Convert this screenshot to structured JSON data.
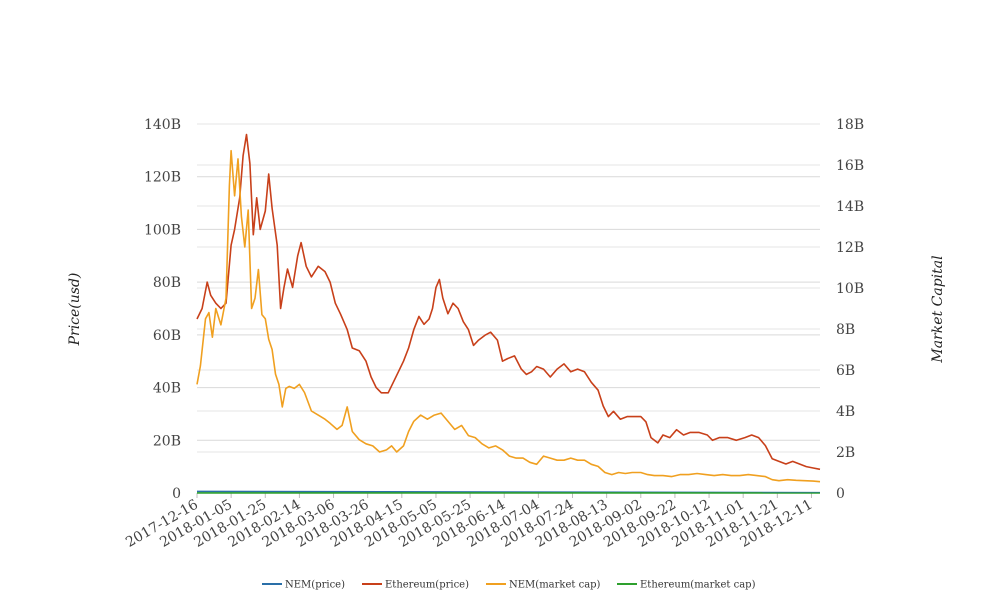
{
  "chart_data": {
    "type": "line",
    "ylabel": "Price(usd)",
    "ylabel_right": "Market Capital",
    "y_left": {
      "ticks": [
        "0",
        "20B",
        "40B",
        "60B",
        "80B",
        "100B",
        "120B",
        "140B"
      ],
      "ylim": [
        0,
        140
      ]
    },
    "y_right": {
      "ticks": [
        "0",
        "2B",
        "4B",
        "6B",
        "8B",
        "10B",
        "12B",
        "14B",
        "16B",
        "18B"
      ],
      "ylim": [
        0,
        18
      ]
    },
    "x_ticks": [
      "2017-12-16",
      "2018-01-05",
      "2018-01-25",
      "2018-02-14",
      "2018-03-06",
      "2018-03-26",
      "2018-04-15",
      "2018-05-05",
      "2018-05-25",
      "2018-06-14",
      "2018-07-04",
      "2018-07-24",
      "2018-08-13",
      "2018-09-02",
      "2018-09-22",
      "2018-10-12",
      "2018-11-01",
      "2018-11-21",
      "2018-12-11"
    ],
    "x_range": [
      "2017-12-16",
      "2018-12-16"
    ],
    "legend_position": "bottom",
    "grid": true,
    "series": [
      {
        "name": "NEM(price)",
        "color": "#2a6fa8",
        "axis": "left",
        "points": [
          [
            "2017-12-16",
            0.6
          ],
          [
            "2018-12-16",
            0.1
          ]
        ]
      },
      {
        "name": "Ethereum(price)",
        "color": "#c8401a",
        "axis": "left",
        "points": [
          [
            "2017-12-16",
            66
          ],
          [
            "2017-12-19",
            70
          ],
          [
            "2017-12-22",
            80
          ],
          [
            "2017-12-24",
            75
          ],
          [
            "2017-12-27",
            72
          ],
          [
            "2017-12-30",
            70
          ],
          [
            "2018-01-02",
            72
          ],
          [
            "2018-01-05",
            94
          ],
          [
            "2018-01-07",
            100
          ],
          [
            "2018-01-10",
            112
          ],
          [
            "2018-01-12",
            128
          ],
          [
            "2018-01-14",
            136
          ],
          [
            "2018-01-16",
            125
          ],
          [
            "2018-01-18",
            98
          ],
          [
            "2018-01-20",
            112
          ],
          [
            "2018-01-22",
            100
          ],
          [
            "2018-01-25",
            107
          ],
          [
            "2018-01-27",
            121
          ],
          [
            "2018-01-29",
            108
          ],
          [
            "2018-02-01",
            94
          ],
          [
            "2018-02-03",
            70
          ],
          [
            "2018-02-05",
            78
          ],
          [
            "2018-02-07",
            85
          ],
          [
            "2018-02-10",
            78
          ],
          [
            "2018-02-13",
            90
          ],
          [
            "2018-02-15",
            95
          ],
          [
            "2018-02-18",
            86
          ],
          [
            "2018-02-21",
            82
          ],
          [
            "2018-02-25",
            86
          ],
          [
            "2018-03-01",
            84
          ],
          [
            "2018-03-04",
            80
          ],
          [
            "2018-03-07",
            72
          ],
          [
            "2018-03-10",
            68
          ],
          [
            "2018-03-14",
            62
          ],
          [
            "2018-03-17",
            55
          ],
          [
            "2018-03-21",
            54
          ],
          [
            "2018-03-25",
            50
          ],
          [
            "2018-03-28",
            44
          ],
          [
            "2018-03-31",
            40
          ],
          [
            "2018-04-03",
            38
          ],
          [
            "2018-04-07",
            38
          ],
          [
            "2018-04-10",
            42
          ],
          [
            "2018-04-13",
            46
          ],
          [
            "2018-04-16",
            50
          ],
          [
            "2018-04-19",
            55
          ],
          [
            "2018-04-22",
            62
          ],
          [
            "2018-04-25",
            67
          ],
          [
            "2018-04-28",
            64
          ],
          [
            "2018-05-01",
            66
          ],
          [
            "2018-05-03",
            70
          ],
          [
            "2018-05-05",
            78
          ],
          [
            "2018-05-07",
            81
          ],
          [
            "2018-05-09",
            74
          ],
          [
            "2018-05-12",
            68
          ],
          [
            "2018-05-15",
            72
          ],
          [
            "2018-05-18",
            70
          ],
          [
            "2018-05-21",
            65
          ],
          [
            "2018-05-24",
            62
          ],
          [
            "2018-05-27",
            56
          ],
          [
            "2018-05-30",
            58
          ],
          [
            "2018-06-03",
            60
          ],
          [
            "2018-06-06",
            61
          ],
          [
            "2018-06-10",
            58
          ],
          [
            "2018-06-13",
            50
          ],
          [
            "2018-06-16",
            51
          ],
          [
            "2018-06-20",
            52
          ],
          [
            "2018-06-24",
            47
          ],
          [
            "2018-06-27",
            45
          ],
          [
            "2018-06-30",
            46
          ],
          [
            "2018-07-03",
            48
          ],
          [
            "2018-07-07",
            47
          ],
          [
            "2018-07-11",
            44
          ],
          [
            "2018-07-15",
            47
          ],
          [
            "2018-07-19",
            49
          ],
          [
            "2018-07-23",
            46
          ],
          [
            "2018-07-27",
            47
          ],
          [
            "2018-07-31",
            46
          ],
          [
            "2018-08-04",
            42
          ],
          [
            "2018-08-08",
            39
          ],
          [
            "2018-08-11",
            33
          ],
          [
            "2018-08-14",
            29
          ],
          [
            "2018-08-17",
            31
          ],
          [
            "2018-08-21",
            28
          ],
          [
            "2018-08-25",
            29
          ],
          [
            "2018-08-29",
            29
          ],
          [
            "2018-09-02",
            29
          ],
          [
            "2018-09-05",
            27
          ],
          [
            "2018-09-08",
            21
          ],
          [
            "2018-09-12",
            19
          ],
          [
            "2018-09-15",
            22
          ],
          [
            "2018-09-19",
            21
          ],
          [
            "2018-09-23",
            24
          ],
          [
            "2018-09-27",
            22
          ],
          [
            "2018-10-01",
            23
          ],
          [
            "2018-10-06",
            23
          ],
          [
            "2018-10-11",
            22
          ],
          [
            "2018-10-14",
            20
          ],
          [
            "2018-10-18",
            21
          ],
          [
            "2018-10-23",
            21
          ],
          [
            "2018-10-28",
            20
          ],
          [
            "2018-11-02",
            21
          ],
          [
            "2018-11-06",
            22
          ],
          [
            "2018-11-10",
            21
          ],
          [
            "2018-11-14",
            18
          ],
          [
            "2018-11-18",
            13
          ],
          [
            "2018-11-22",
            12
          ],
          [
            "2018-11-26",
            11
          ],
          [
            "2018-11-30",
            12
          ],
          [
            "2018-12-04",
            11
          ],
          [
            "2018-12-08",
            10
          ],
          [
            "2018-12-12",
            9.5
          ],
          [
            "2018-12-16",
            9
          ]
        ]
      },
      {
        "name": "NEM(market cap)",
        "color": "#f0a020",
        "axis": "right",
        "points": [
          [
            "2017-12-16",
            5.3
          ],
          [
            "2017-12-18",
            6.2
          ],
          [
            "2017-12-21",
            8.5
          ],
          [
            "2017-12-23",
            8.8
          ],
          [
            "2017-12-25",
            7.6
          ],
          [
            "2017-12-27",
            9.0
          ],
          [
            "2017-12-30",
            8.2
          ],
          [
            "2018-01-02",
            9.5
          ],
          [
            "2018-01-04",
            15.0
          ],
          [
            "2018-01-05",
            16.7
          ],
          [
            "2018-01-07",
            14.5
          ],
          [
            "2018-01-09",
            16.3
          ],
          [
            "2018-01-11",
            13.5
          ],
          [
            "2018-01-13",
            12.0
          ],
          [
            "2018-01-15",
            13.8
          ],
          [
            "2018-01-17",
            9.0
          ],
          [
            "2018-01-19",
            9.5
          ],
          [
            "2018-01-21",
            10.9
          ],
          [
            "2018-01-23",
            8.7
          ],
          [
            "2018-01-25",
            8.5
          ],
          [
            "2018-01-27",
            7.5
          ],
          [
            "2018-01-29",
            7.0
          ],
          [
            "2018-01-31",
            5.8
          ],
          [
            "2018-02-02",
            5.3
          ],
          [
            "2018-02-04",
            4.2
          ],
          [
            "2018-02-06",
            5.1
          ],
          [
            "2018-02-08",
            5.2
          ],
          [
            "2018-02-11",
            5.1
          ],
          [
            "2018-02-14",
            5.3
          ],
          [
            "2018-02-17",
            4.9
          ],
          [
            "2018-02-21",
            4.0
          ],
          [
            "2018-02-25",
            3.8
          ],
          [
            "2018-03-01",
            3.6
          ],
          [
            "2018-03-04",
            3.4
          ],
          [
            "2018-03-08",
            3.1
          ],
          [
            "2018-03-11",
            3.3
          ],
          [
            "2018-03-14",
            4.2
          ],
          [
            "2018-03-17",
            3.0
          ],
          [
            "2018-03-21",
            2.6
          ],
          [
            "2018-03-25",
            2.4
          ],
          [
            "2018-03-29",
            2.3
          ],
          [
            "2018-04-02",
            2.0
          ],
          [
            "2018-04-06",
            2.1
          ],
          [
            "2018-04-09",
            2.3
          ],
          [
            "2018-04-12",
            2.0
          ],
          [
            "2018-04-16",
            2.3
          ],
          [
            "2018-04-19",
            3.0
          ],
          [
            "2018-04-22",
            3.5
          ],
          [
            "2018-04-26",
            3.8
          ],
          [
            "2018-04-30",
            3.6
          ],
          [
            "2018-05-04",
            3.8
          ],
          [
            "2018-05-08",
            3.9
          ],
          [
            "2018-05-12",
            3.5
          ],
          [
            "2018-05-16",
            3.1
          ],
          [
            "2018-05-20",
            3.3
          ],
          [
            "2018-05-24",
            2.8
          ],
          [
            "2018-05-28",
            2.7
          ],
          [
            "2018-06-01",
            2.4
          ],
          [
            "2018-06-05",
            2.2
          ],
          [
            "2018-06-09",
            2.3
          ],
          [
            "2018-06-13",
            2.1
          ],
          [
            "2018-06-17",
            1.8
          ],
          [
            "2018-06-21",
            1.7
          ],
          [
            "2018-06-25",
            1.7
          ],
          [
            "2018-06-29",
            1.5
          ],
          [
            "2018-07-03",
            1.4
          ],
          [
            "2018-07-07",
            1.8
          ],
          [
            "2018-07-11",
            1.7
          ],
          [
            "2018-07-15",
            1.6
          ],
          [
            "2018-07-19",
            1.6
          ],
          [
            "2018-07-23",
            1.7
          ],
          [
            "2018-07-27",
            1.6
          ],
          [
            "2018-07-31",
            1.6
          ],
          [
            "2018-08-04",
            1.4
          ],
          [
            "2018-08-08",
            1.3
          ],
          [
            "2018-08-12",
            1.0
          ],
          [
            "2018-08-16",
            0.9
          ],
          [
            "2018-08-20",
            1.0
          ],
          [
            "2018-08-24",
            0.95
          ],
          [
            "2018-08-28",
            1.0
          ],
          [
            "2018-09-02",
            1.0
          ],
          [
            "2018-09-06",
            0.9
          ],
          [
            "2018-09-10",
            0.85
          ],
          [
            "2018-09-15",
            0.85
          ],
          [
            "2018-09-20",
            0.8
          ],
          [
            "2018-09-25",
            0.9
          ],
          [
            "2018-09-30",
            0.9
          ],
          [
            "2018-10-05",
            0.95
          ],
          [
            "2018-10-10",
            0.9
          ],
          [
            "2018-10-15",
            0.85
          ],
          [
            "2018-10-20",
            0.9
          ],
          [
            "2018-10-25",
            0.85
          ],
          [
            "2018-10-30",
            0.85
          ],
          [
            "2018-11-04",
            0.9
          ],
          [
            "2018-11-09",
            0.85
          ],
          [
            "2018-11-14",
            0.8
          ],
          [
            "2018-11-18",
            0.65
          ],
          [
            "2018-11-22",
            0.6
          ],
          [
            "2018-11-27",
            0.65
          ],
          [
            "2018-12-02",
            0.62
          ],
          [
            "2018-12-07",
            0.6
          ],
          [
            "2018-12-12",
            0.58
          ],
          [
            "2018-12-16",
            0.55
          ]
        ]
      },
      {
        "name": "Ethereum(market cap)",
        "color": "#2ea02e",
        "axis": "right",
        "points": [
          [
            "2017-12-16",
            0.005
          ],
          [
            "2018-12-16",
            0.002
          ]
        ]
      }
    ]
  }
}
